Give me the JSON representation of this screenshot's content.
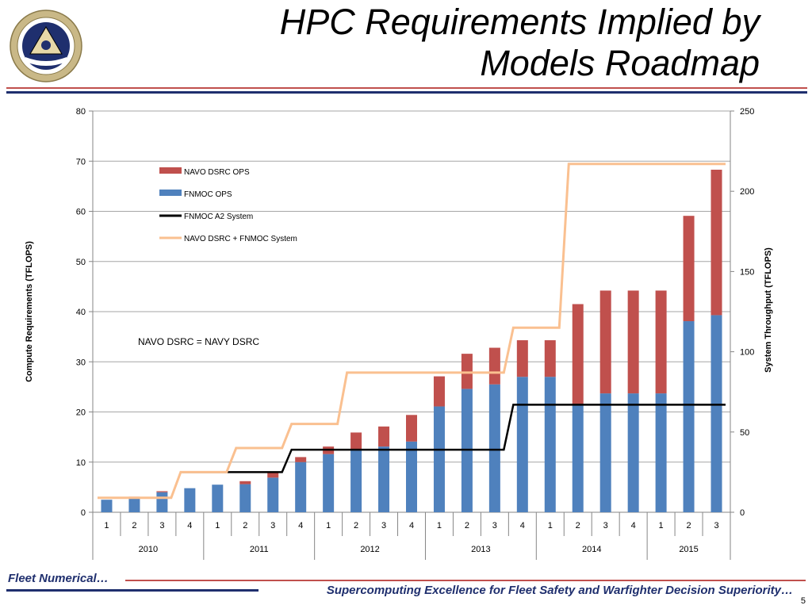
{
  "slide": {
    "title_line1": "HPC Requirements Implied by",
    "title_line2": "Models Roadmap",
    "footer_left": "Fleet Numerical…",
    "footer_right": "Supercomputing Excellence for Fleet Safety and Warfighter Decision Superiority…",
    "page_number": "5",
    "colors": {
      "red_rule": "#c0504d",
      "navy": "#1f2f6e"
    }
  },
  "chart_data": {
    "type": "bar",
    "stacked": true,
    "categories": [
      "1",
      "2",
      "3",
      "4",
      "1",
      "2",
      "3",
      "4",
      "1",
      "2",
      "3",
      "4",
      "1",
      "2",
      "3",
      "4",
      "1",
      "2",
      "3",
      "4",
      "1",
      "2",
      "3"
    ],
    "category_groups": [
      {
        "label": "2010",
        "count": 4
      },
      {
        "label": "2011",
        "count": 4
      },
      {
        "label": "2012",
        "count": 4
      },
      {
        "label": "2013",
        "count": 4
      },
      {
        "label": "2014",
        "count": 4
      },
      {
        "label": "2015",
        "count": 3
      }
    ],
    "series": [
      {
        "name": "NAVO DSRC OPS",
        "kind": "bar",
        "axis": "left",
        "color": "#c0504d",
        "values": [
          0,
          0.3,
          0.2,
          0,
          0,
          0.6,
          1,
          1,
          1.5,
          3.5,
          4,
          5.3,
          6,
          7,
          7.3,
          7.3,
          7.3,
          20,
          20.5,
          20.5,
          20.5,
          21,
          29
        ]
      },
      {
        "name": "FNMOC OPS",
        "kind": "bar",
        "axis": "left",
        "color": "#4f81bd",
        "values": [
          2.5,
          2.8,
          4,
          4.8,
          5.5,
          5.6,
          6.9,
          10,
          11.6,
          12.4,
          13.1,
          14.1,
          21.1,
          24.6,
          25.5,
          27,
          27,
          21.5,
          23.7,
          23.7,
          23.7,
          38.1,
          39.3
        ]
      },
      {
        "name": "FNMOC A2 System",
        "kind": "line",
        "axis": "right",
        "color": "#000000",
        "values": [
          null,
          null,
          null,
          25,
          25,
          25,
          25,
          39,
          39,
          39,
          39,
          39,
          39,
          39,
          39,
          67,
          67,
          67,
          67,
          67,
          67,
          67,
          67
        ]
      },
      {
        "name": "NAVO DSRC + FNMOC System",
        "kind": "line",
        "axis": "right",
        "color": "#fac090",
        "values": [
          9,
          9,
          9,
          25,
          25,
          40,
          40,
          55,
          55,
          87,
          87,
          87,
          87,
          87,
          87,
          115,
          115,
          217,
          217,
          217,
          217,
          217,
          217
        ]
      }
    ],
    "ylabel": "Compute Requirements (TFLOPS)",
    "y2label": "System Throughput (TFLOPS)",
    "ylim": [
      0,
      80
    ],
    "y2lim": [
      0,
      250
    ],
    "yticks": [
      0,
      10,
      20,
      30,
      40,
      50,
      60,
      70,
      80
    ],
    "y2ticks": [
      0,
      50,
      100,
      150,
      200,
      250
    ],
    "grid": true,
    "legend_position": "top-left inside plot",
    "annotation": "NAVO DSRC = NAVY DSRC"
  }
}
